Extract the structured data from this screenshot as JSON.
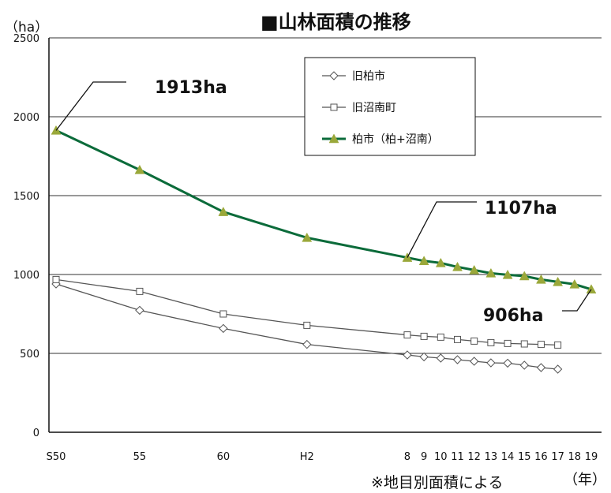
{
  "chart_data": {
    "type": "line",
    "title": "■山林面積の推移",
    "y_unit": "（ha）",
    "x_unit": "（年）",
    "note": "※地目別面積による",
    "xlabel": "",
    "ylabel": "",
    "ylim": [
      0,
      2500
    ],
    "yticks": [
      0,
      500,
      1000,
      1500,
      2000,
      2500
    ],
    "grid": true,
    "legend_position": "top-right",
    "categories": [
      "S50",
      "55",
      "60",
      "H2",
      "8",
      "9",
      "10",
      "11",
      "12",
      "13",
      "14",
      "15",
      "16",
      "17",
      "18",
      "19"
    ],
    "x": [
      50,
      55,
      60,
      65,
      71,
      72,
      73,
      74,
      75,
      76,
      77,
      78,
      79,
      80,
      81,
      82
    ],
    "series": [
      {
        "name": "旧柏市",
        "marker": "diamond",
        "color": "#555555",
        "values": [
          940,
          773,
          658,
          557,
          490,
          478,
          470,
          460,
          450,
          440,
          438,
          425,
          410,
          400,
          null,
          null
        ]
      },
      {
        "name": "旧沼南町",
        "marker": "square",
        "color": "#555555",
        "values": [
          968,
          893,
          750,
          678,
          617,
          608,
          603,
          588,
          578,
          568,
          563,
          560,
          557,
          553,
          null,
          null
        ]
      },
      {
        "name": "柏市（柏+沼南）",
        "marker": "triangle",
        "color": "#0b6b3a",
        "marker_color": "#9aa83a",
        "values": [
          1913,
          1663,
          1397,
          1233,
          1107,
          1086,
          1073,
          1048,
          1028,
          1008,
          998,
          990,
          968,
          953,
          938,
          906
        ]
      }
    ],
    "annotations": [
      {
        "label": "1913ha",
        "x": 50,
        "y": 1913
      },
      {
        "label": "1107ha",
        "x": 71,
        "y": 1107
      },
      {
        "label": "906ha",
        "x": 82,
        "y": 906
      }
    ]
  }
}
